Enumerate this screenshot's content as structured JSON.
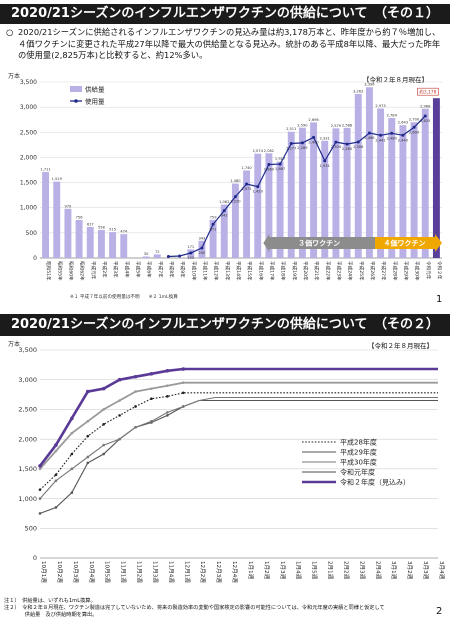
{
  "slide1": {
    "title": "2020/21シーズンのインフルエンザワクチンの供給について　（その１）",
    "bullet": "○",
    "text": "2020/21シーズンに供給されるインフルエンザワクチンの見込み量は約3,178万本と、昨年度から約７％増加し、４価ワクチンに変更された平成27年以降で最大の供給量となる見込み。統計のある平成8年以降、最大だった昨年の使用量(2,825万本)と比較すると、約12%多い。",
    "date_tag": "【令和２年８月現在】",
    "page": "1",
    "arrow_3": "３価ワクチン",
    "arrow_4": "４価ワクチン",
    "footnote": "※１ 平成７年以前の使用量は不明　　※２ 1mL換算"
  },
  "slide2": {
    "title": "2020/21シーズンのインフルエンザワクチンの供給について　（その２）",
    "date_tag": "【令和２年８月現在】",
    "page": "2",
    "note1": "注１）　供給量は、いずれも1mL換算。",
    "note2": "注２）　令和２年８月現在、ワクチン製造は完了していないため、将来の製造効率の変動や国家検定の影響の可能性については、令和元年度の実績と同様と仮定して",
    "note3": "　　　　供給量　及び供給時期を算出。"
  },
  "chart_data": [
    {
      "type": "bar",
      "ylabel": "万本",
      "ylim": [
        0,
        3500
      ],
      "yticks": [
        0,
        500,
        1000,
        1500,
        2000,
        2500,
        3000,
        3500
      ],
      "categories": [
        "昭和51年",
        "昭和55年",
        "昭和60年",
        "昭和62年",
        "平成元年",
        "平成2年",
        "平成3年",
        "平成4年",
        "平成5年",
        "平成6年",
        "平成7年",
        "平成8年",
        "平成9年",
        "平成10年",
        "平成11年",
        "平成12年",
        "平成13年",
        "平成14年",
        "平成15年",
        "平成16年",
        "平成17年",
        "平成18年",
        "平成19年",
        "平成20年",
        "平成21年",
        "平成22年",
        "平成23年",
        "平成24年",
        "平成25年",
        "平成26年",
        "平成27年",
        "平成28年",
        "平成29年",
        "平成30年",
        "令和元年",
        "令和２年"
      ],
      "series": [
        {
          "name": "供給量",
          "values": [
            1711,
            1519,
            979,
            756,
            617,
            558,
            515,
            474,
            null,
            30,
            72,
            null,
            null,
            171,
            343,
            759,
            1062,
            1480,
            1740,
            2074,
            2082,
            1917,
            2511,
            2590,
            2696,
            2331,
            2579,
            2588,
            3262,
            3396,
            2973,
            2784,
            2643,
            2700,
            2968,
            3178
          ]
        },
        {
          "name": "使用量",
          "values": [
            null,
            null,
            null,
            null,
            null,
            null,
            null,
            null,
            null,
            null,
            null,
            30,
            40,
            100,
            200,
            671,
            942,
            1220,
            1471,
            1420,
            1860,
            1867,
            2277,
            2289,
            2400,
            1931,
            2304,
            2265,
            2306,
            2486,
            2441,
            2480,
            2440,
            2600,
            2825,
            null
          ]
        }
      ],
      "highlight_label": "約3,178",
      "legend": [
        "供給量",
        "使用量"
      ]
    },
    {
      "type": "line",
      "ylabel": "万本",
      "ylim": [
        0,
        3500
      ],
      "yticks": [
        0,
        500,
        1000,
        1500,
        2000,
        2500,
        3000,
        3500
      ],
      "x": [
        "10月1週",
        "10月2週",
        "10月3週",
        "10月4週",
        "10月5週",
        "11月1週",
        "11月2週",
        "11月3週",
        "11月4週",
        "12月1週",
        "12月2週",
        "12月3週",
        "12月4週",
        "1月1週",
        "1月2週",
        "1月3週",
        "1月4週",
        "1月5週",
        "2月1週",
        "2月2週",
        "2月3週",
        "2月4週",
        "3月1週",
        "3月2週",
        "3月3週",
        "3月4週"
      ],
      "series": [
        {
          "name": "平成28年度",
          "values": [
            1150,
            1400,
            1750,
            2050,
            2250,
            2400,
            2550,
            2680,
            2720,
            2780,
            2780,
            2780,
            2780,
            2780,
            2780,
            2780,
            2780,
            2780,
            2780,
            2780,
            2780,
            2780,
            2780,
            2780,
            2780,
            2780
          ]
        },
        {
          "name": "平成29年度",
          "values": [
            750,
            850,
            1100,
            1600,
            1750,
            2000,
            2200,
            2280,
            2400,
            2550,
            2650,
            2650,
            2650,
            2650,
            2650,
            2650,
            2650,
            2650,
            2650,
            2650,
            2650,
            2650,
            2650,
            2650,
            2650,
            2650
          ]
        },
        {
          "name": "平成30年度",
          "values": [
            1000,
            1300,
            1500,
            1700,
            1900,
            2000,
            2200,
            2300,
            2450,
            2550,
            2650,
            2700,
            2700,
            2700,
            2700,
            2700,
            2700,
            2700,
            2700,
            2700,
            2700,
            2700,
            2700,
            2700,
            2700,
            2700
          ]
        },
        {
          "name": "令和元年度",
          "values": [
            1500,
            1800,
            2100,
            2300,
            2500,
            2650,
            2800,
            2850,
            2900,
            2950,
            2950,
            2950,
            2950,
            2950,
            2950,
            2950,
            2950,
            2950,
            2950,
            2950,
            2950,
            2950,
            2950,
            2950,
            2950,
            2950
          ]
        },
        {
          "name": "令和２年度（見込み）",
          "values": [
            1550,
            1900,
            2350,
            2800,
            2850,
            3000,
            3050,
            3100,
            3150,
            3180,
            3180,
            3180,
            3180,
            3180,
            3180,
            3180,
            3180,
            3180,
            3180,
            3180,
            3180,
            3180,
            3180,
            3180,
            3180,
            3180
          ]
        }
      ]
    }
  ],
  "colors": {
    "bar": "#b9b1e6",
    "bar_last": "#5a3f9a",
    "usage_line": "#1f2a8a",
    "r2_line": "#5a3a96",
    "r1_line": "#9a9a9a",
    "h28": "#222222",
    "h29": "#555555",
    "h30": "#777777",
    "banner": "#1b1b1b"
  }
}
